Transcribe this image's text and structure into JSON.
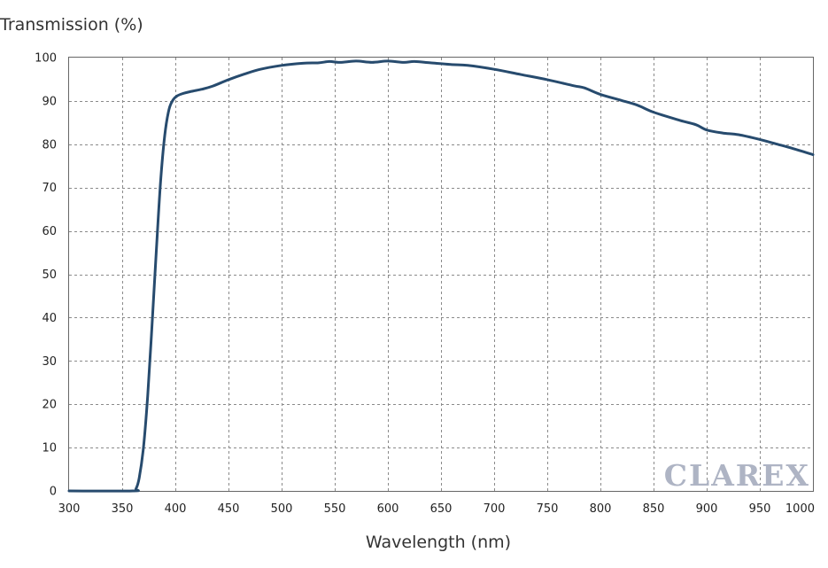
{
  "chart_data": {
    "type": "line",
    "title": "",
    "ylabel": "Transmission (%)",
    "xlabel": "Wavelength (nm)",
    "xlim": [
      300,
      1000
    ],
    "ylim": [
      0,
      100
    ],
    "grid": true,
    "x_ticks": [
      "300",
      "350",
      "400",
      "450",
      "500",
      "550",
      "600",
      "650",
      "700",
      "750",
      "800",
      "850",
      "900",
      "950",
      "1000"
    ],
    "y_ticks": [
      "0",
      "10",
      "20",
      "30",
      "40",
      "50",
      "60",
      "70",
      "80",
      "90",
      "100"
    ],
    "series": [
      {
        "color": "#274b6e",
        "points": [
          [
            300,
            0
          ],
          [
            360,
            0
          ],
          [
            363,
            0.5
          ],
          [
            366,
            3
          ],
          [
            370,
            10
          ],
          [
            374,
            22
          ],
          [
            378,
            38
          ],
          [
            382,
            55
          ],
          [
            386,
            71
          ],
          [
            390,
            82
          ],
          [
            394,
            88
          ],
          [
            398,
            90.3
          ],
          [
            402,
            91.2
          ],
          [
            407,
            91.7
          ],
          [
            415,
            92.2
          ],
          [
            425,
            92.7
          ],
          [
            435,
            93.4
          ],
          [
            450,
            94.9
          ],
          [
            465,
            96.2
          ],
          [
            480,
            97.3
          ],
          [
            500,
            98.2
          ],
          [
            520,
            98.7
          ],
          [
            535,
            98.8
          ],
          [
            545,
            99.1
          ],
          [
            555,
            98.9
          ],
          [
            570,
            99.2
          ],
          [
            585,
            98.9
          ],
          [
            600,
            99.2
          ],
          [
            615,
            98.9
          ],
          [
            625,
            99.1
          ],
          [
            640,
            98.8
          ],
          [
            660,
            98.4
          ],
          [
            675,
            98.2
          ],
          [
            700,
            97.3
          ],
          [
            725,
            96.1
          ],
          [
            750,
            94.9
          ],
          [
            775,
            93.5
          ],
          [
            785,
            93.0
          ],
          [
            800,
            91.5
          ],
          [
            820,
            90.1
          ],
          [
            835,
            89.0
          ],
          [
            850,
            87.4
          ],
          [
            875,
            85.5
          ],
          [
            890,
            84.5
          ],
          [
            900,
            83.3
          ],
          [
            915,
            82.6
          ],
          [
            930,
            82.2
          ],
          [
            950,
            81.1
          ],
          [
            965,
            80.1
          ],
          [
            980,
            79.1
          ],
          [
            1000,
            77.6
          ]
        ]
      }
    ]
  },
  "watermark": {
    "text": "CLAREX"
  }
}
